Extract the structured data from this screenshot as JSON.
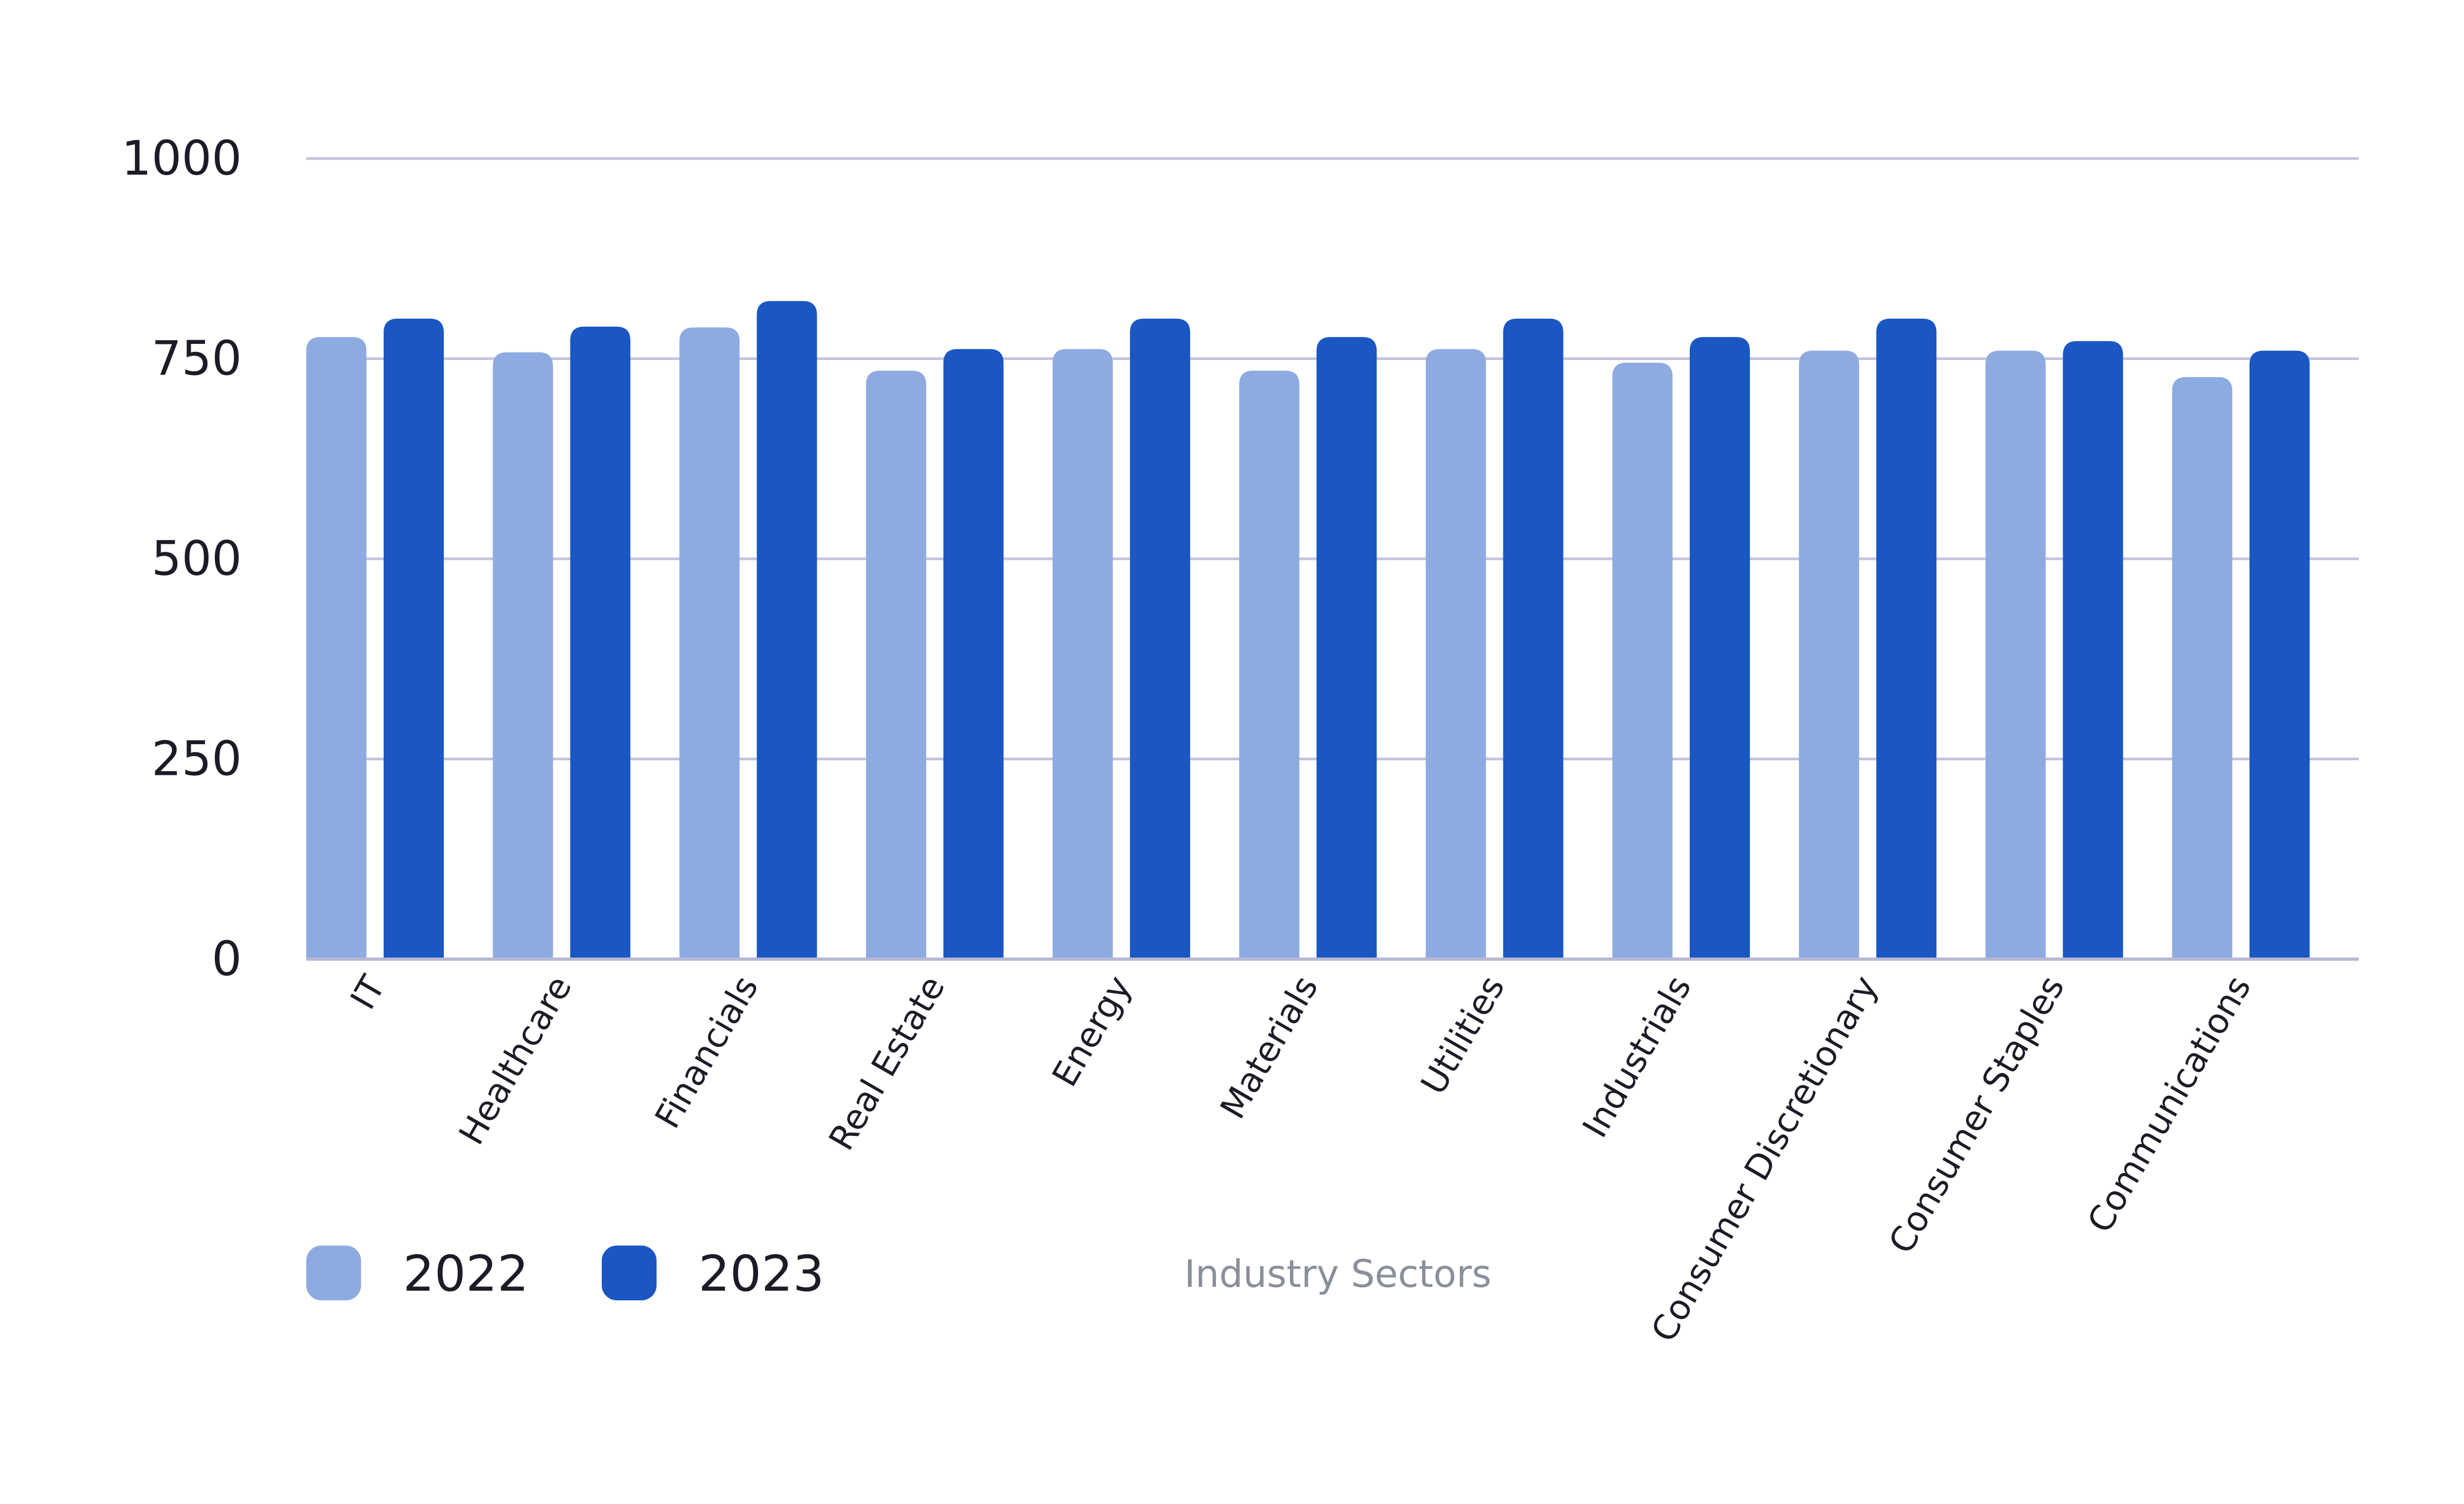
{
  "chart_data": {
    "type": "bar",
    "title": "",
    "xlabel": "Industry Sectors",
    "ylabel": "",
    "ylim": [
      0,
      1000
    ],
    "yticks": [
      0,
      250,
      500,
      750,
      1000
    ],
    "grid": true,
    "legend_position": "bottom-left",
    "categories": [
      "IT",
      "Healthcare",
      "Financials",
      "Real Estate",
      "Energy",
      "Materials",
      "Utilities",
      "Industrials",
      "Consumer Discretionary",
      "Consumer Staples",
      "Communications"
    ],
    "series": [
      {
        "name": "2022",
        "color": "#8eabe1",
        "values": [
          777,
          758,
          789,
          735,
          762,
          735,
          762,
          745,
          760,
          760,
          727
        ]
      },
      {
        "name": "2023",
        "color": "#1a57c2",
        "values": [
          800,
          790,
          822,
          762,
          800,
          777,
          800,
          777,
          800,
          772,
          760
        ]
      }
    ]
  },
  "colors": {
    "grid": "#c3c4dc",
    "axis": "#b7b8d4",
    "text": "#1c1c28",
    "muted": "#8a8f9c"
  }
}
